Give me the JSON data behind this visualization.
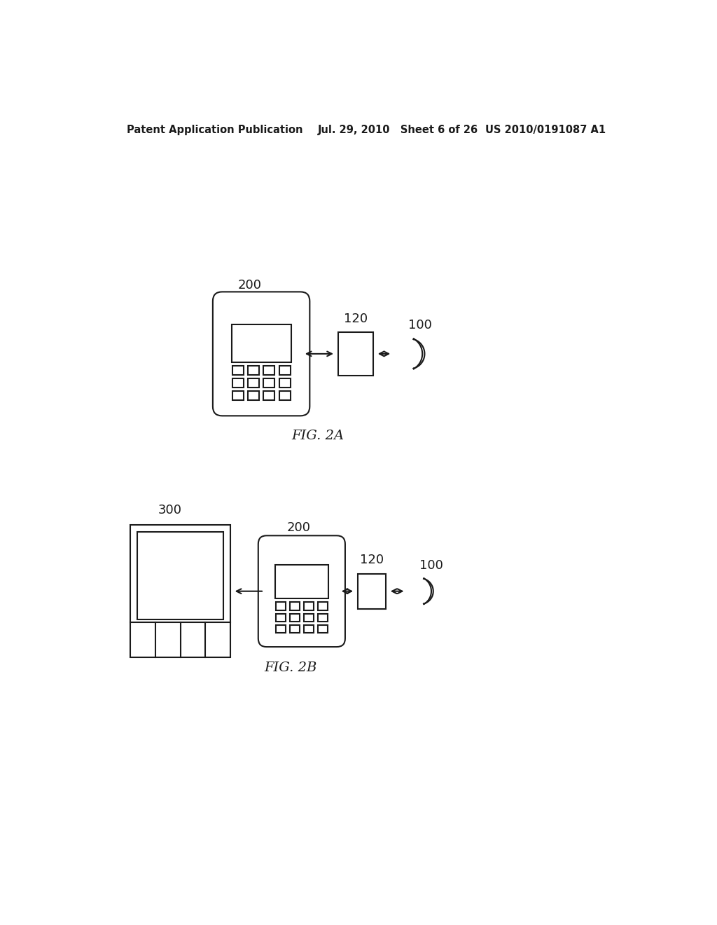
{
  "bg_color": "#ffffff",
  "line_color": "#1a1a1a",
  "header_text": "Patent Application Publication",
  "header_date": "Jul. 29, 2010   Sheet 6 of 26",
  "header_patent": "US 2010/0191087 A1",
  "fig2a_label": "FIG. 2A",
  "fig2b_label": "FIG. 2B",
  "label_200_a": "200",
  "label_120_a": "120",
  "label_100_a": "100",
  "label_300_b": "300",
  "label_200_b": "200",
  "label_120_b": "120",
  "label_100_b": "100"
}
